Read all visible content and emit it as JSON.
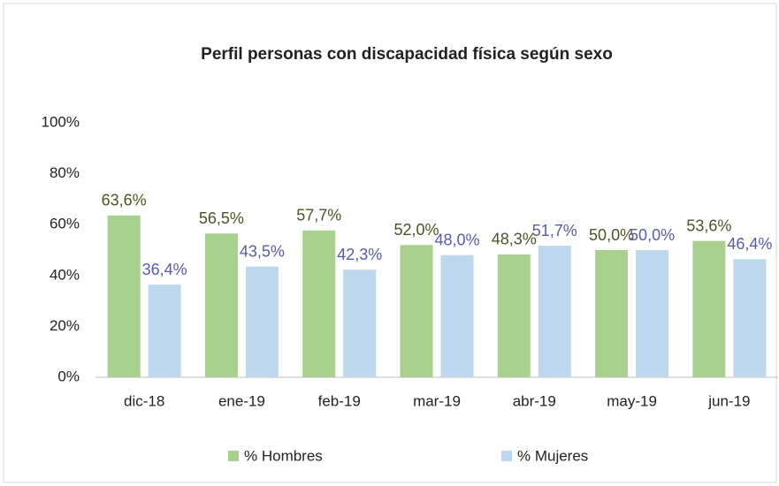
{
  "chart_data": {
    "type": "bar",
    "title": "Perfil personas con discapacidad  física según sexo",
    "categories": [
      "dic-18",
      "ene-19",
      "feb-19",
      "mar-19",
      "abr-19",
      "may-19",
      "jun-19"
    ],
    "series": [
      {
        "name": "% Hombres",
        "color": "#a9d18e",
        "label_color": "#4f5224",
        "values": [
          63.6,
          56.5,
          57.7,
          52.0,
          48.3,
          50.0,
          53.6
        ],
        "value_labels": [
          "63,6%",
          "56,5%",
          "57,7%",
          "52,0%",
          "48,3%",
          "50,0%",
          "53,6%"
        ]
      },
      {
        "name": "% Mujeres",
        "color": "#bdd7ee",
        "label_color": "#5a5aaa",
        "values": [
          36.4,
          43.5,
          42.3,
          48.0,
          51.7,
          50.0,
          46.4
        ],
        "value_labels": [
          "36,4%",
          "43,5%",
          "42,3%",
          "48,0%",
          "51,7%",
          "50,0%",
          "46,4%"
        ]
      }
    ],
    "ylim": [
      0,
      100
    ],
    "yticks": [
      {
        "value": 0,
        "label": "0%"
      },
      {
        "value": 20,
        "label": "20%"
      },
      {
        "value": 40,
        "label": "40%"
      },
      {
        "value": 60,
        "label": "60%"
      },
      {
        "value": 80,
        "label": "80%"
      },
      {
        "value": 100,
        "label": "100%"
      }
    ],
    "grid": false,
    "legend": "bottom"
  }
}
